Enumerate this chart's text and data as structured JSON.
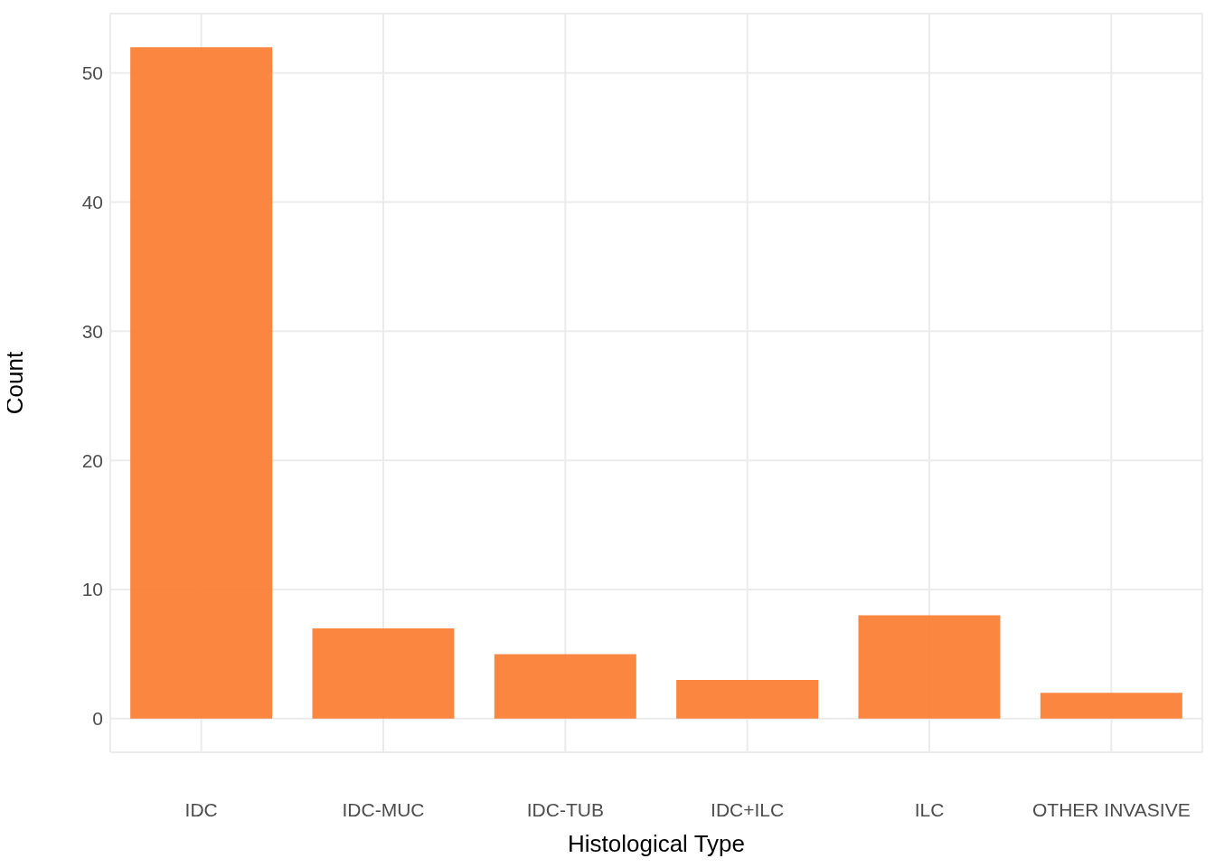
{
  "chart_data": {
    "type": "bar",
    "xlabel": "Histological Type",
    "ylabel": "Count",
    "categories": [
      "IDC",
      "IDC-MUC",
      "IDC-TUB",
      "IDC+ILC",
      "ILC",
      "OTHER INVASIVE"
    ],
    "values": [
      52,
      7,
      5,
      3,
      8,
      2
    ],
    "color": "#fb7f35",
    "ylim": [
      -2.6,
      54.6
    ],
    "yticks": [
      0,
      10,
      20,
      30,
      40,
      50
    ],
    "grid": true
  }
}
